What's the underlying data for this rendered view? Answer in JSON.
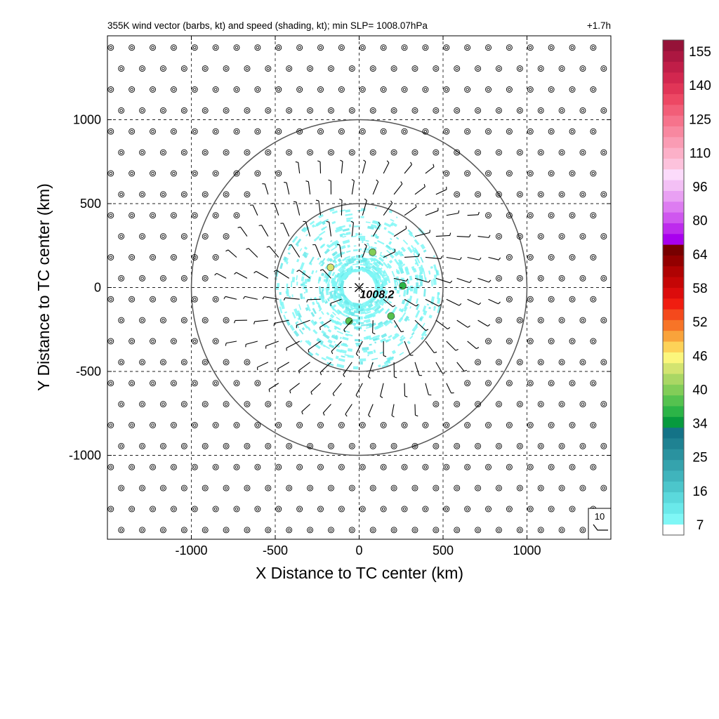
{
  "chart_data": {
    "type": "wind_barb_map",
    "title": "355K wind vector (barbs, kt) and speed (shading, kt); min SLP= 1008.07hPa",
    "time_label": "+1.7h",
    "xlabel": "X Distance to TC center (km)",
    "ylabel": "Y Distance to TC center (km)",
    "xlim": [
      -1500,
      1500
    ],
    "ylim": [
      -1500,
      1500
    ],
    "x_ticks": [
      -1000,
      -500,
      0,
      500,
      1000
    ],
    "y_ticks": [
      -1000,
      -500,
      0,
      500,
      1000
    ],
    "x_tick_labels": [
      "-1000",
      "-500",
      "0",
      "500",
      "1000"
    ],
    "y_tick_labels": [
      "-1000",
      "-500",
      "0",
      "500",
      "1000"
    ],
    "grid": "dashed",
    "range_rings_km": [
      500,
      1000
    ],
    "center": {
      "x": 0,
      "y": 0,
      "marker": "x",
      "label": "1008.2"
    },
    "reference_barb": {
      "label": "10"
    },
    "barb_region_radius_km": [
      120,
      800
    ],
    "calm_symbol": "double circle",
    "shading_ring_km": [
      100,
      500
    ],
    "hotspots": [
      {
        "x": -170,
        "y": 120,
        "speed": 50
      },
      {
        "x": 80,
        "y": 210,
        "speed": 45
      },
      {
        "x": 190,
        "y": -170,
        "speed": 42
      },
      {
        "x": -60,
        "y": -200,
        "speed": 40
      },
      {
        "x": 260,
        "y": 10,
        "speed": 38
      }
    ],
    "colorbar": {
      "colors": [
        "#ffffff",
        "#7ff7f6",
        "#6ae9ea",
        "#5bd9dc",
        "#4cc6cb",
        "#40b4bc",
        "#35a3ad",
        "#2a929f",
        "#1f8292",
        "#147387",
        "#079a3e",
        "#2cb447",
        "#55c24f",
        "#82cd58",
        "#aad764",
        "#d3e470",
        "#fbf67c",
        "#fdd258",
        "#f9a33b",
        "#f77427",
        "#f4491c",
        "#f01d10",
        "#dc0c0c",
        "#c50606",
        "#af0303",
        "#930000",
        "#770000",
        "#a800ee",
        "#bd2bed",
        "#cf57ef",
        "#dd7cf1",
        "#e9a0f3",
        "#f3c0f5",
        "#fcdbfb",
        "#fdc2dc",
        "#fcb0c8",
        "#fa9cb4",
        "#f888a0",
        "#f6738c",
        "#f25e78",
        "#ed4864",
        "#e13557",
        "#d2274f",
        "#c01e48",
        "#ac1741",
        "#951238"
      ],
      "tick_labels": [
        "155",
        "140",
        "125",
        "110",
        "96",
        "80",
        "64",
        "58",
        "52",
        "46",
        "40",
        "34",
        "25",
        "16",
        "7"
      ],
      "tick_values": [
        155,
        140,
        125,
        110,
        96,
        80,
        64,
        58,
        52,
        46,
        40,
        34,
        25,
        16,
        7
      ]
    }
  }
}
